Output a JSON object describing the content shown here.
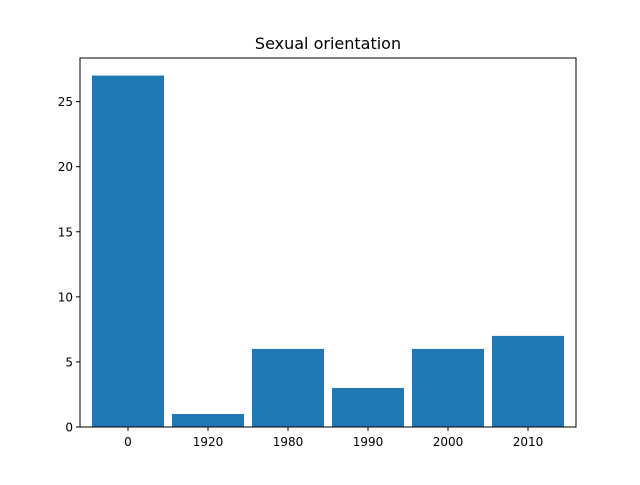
{
  "chart_data": {
    "type": "bar",
    "title": "Sexual orientation",
    "xlabel": "",
    "ylabel": "",
    "categories": [
      "0",
      "1920",
      "1980",
      "1990",
      "2000",
      "2010"
    ],
    "values": [
      27,
      1,
      6,
      3,
      6,
      7
    ],
    "ylim": [
      0,
      28.35
    ],
    "yticks": [
      0,
      5,
      10,
      15,
      20,
      25
    ],
    "grid": false,
    "bar_color": "#1f77b4"
  }
}
